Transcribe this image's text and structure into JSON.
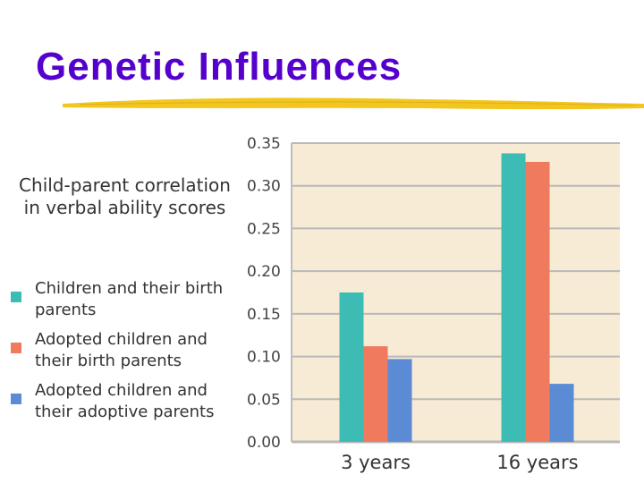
{
  "slide": {
    "title": "Genetic Influences"
  },
  "chart_data": {
    "type": "bar",
    "ylabel": "Child-parent correlation in verbal ability scores",
    "categories": [
      "3 years",
      "16 years"
    ],
    "ylim": [
      0,
      0.35
    ],
    "yticks": [
      "0.00",
      "0.05",
      "0.10",
      "0.15",
      "0.20",
      "0.25",
      "0.30",
      "0.35"
    ],
    "grid": true,
    "legend_position": "left",
    "series": [
      {
        "name": "Children and their birth parents",
        "color": "#3dbcb5",
        "values": [
          0.175,
          0.338
        ]
      },
      {
        "name": "Adopted children and their birth parents",
        "color": "#f07a5d",
        "values": [
          0.112,
          0.328
        ]
      },
      {
        "name": "Adopted children and their adoptive parents",
        "color": "#5a8bd4",
        "values": [
          0.097,
          0.068
        ]
      }
    ],
    "colors": {
      "plot_background": "#f8ebd5",
      "gridline": "#b9b9b9",
      "title": "#5500cc",
      "underline": "#f2c61f"
    }
  }
}
